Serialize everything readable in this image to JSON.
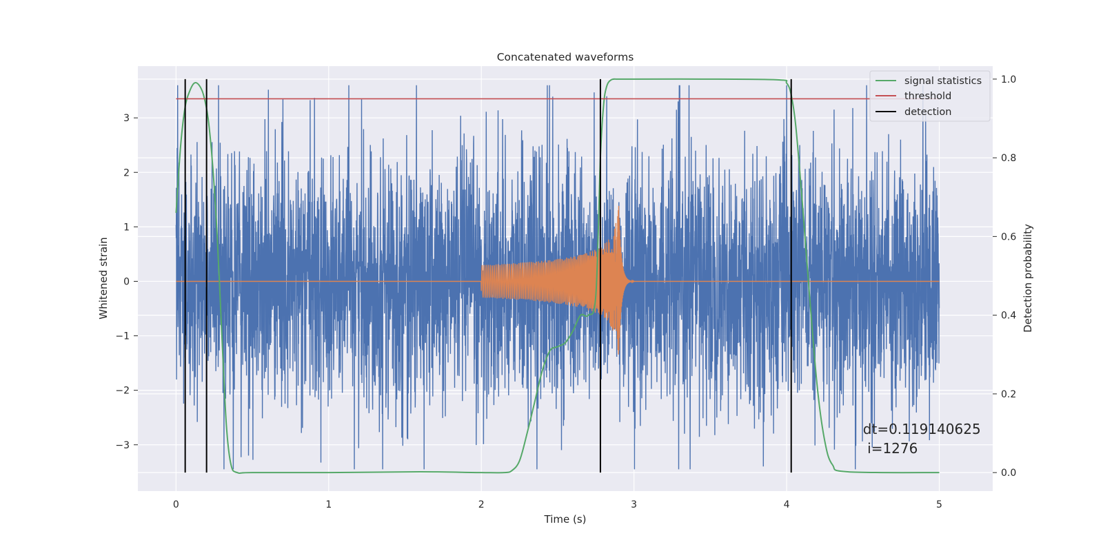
{
  "chart_data": {
    "type": "line",
    "title": "Concatenated waveforms",
    "xlabel": "Time (s)",
    "ylabel": "Whitened strain",
    "y2label": "Detection probability",
    "xlim": [
      -0.25,
      5.35
    ],
    "ylim": [
      -3.85,
      3.95
    ],
    "y2lim": [
      -0.047,
      1.033
    ],
    "xticks": [
      0,
      1,
      2,
      3,
      4,
      5
    ],
    "yticks": [
      -3,
      -2,
      -1,
      0,
      1,
      2,
      3
    ],
    "y2ticks": [
      0.0,
      0.2,
      0.4,
      0.6,
      0.8,
      1.0
    ],
    "xtick_labels": [
      "0",
      "1",
      "2",
      "3",
      "4",
      "5"
    ],
    "ytick_labels": [
      "−3",
      "−2",
      "−1",
      "0",
      "1",
      "2",
      "3"
    ],
    "y2tick_labels": [
      "0.0",
      "0.2",
      "0.4",
      "0.6",
      "0.8",
      "1.0"
    ],
    "grid": true,
    "legend_position": "top-right",
    "legend": [
      "signal statistics",
      "threshold",
      "detection"
    ],
    "colors": {
      "strain": "#4c72b0",
      "injected": "#dd8452",
      "signal_statistics": "#55a868",
      "threshold": "#c44e52",
      "detection": "#000000",
      "background": "#eaeaf2",
      "grid": "#ffffff"
    },
    "series": [
      {
        "name": "",
        "description_of_shape": "whitened noisy strain",
        "x_range": [
          0,
          5
        ],
        "envelope_min": -3.45,
        "envelope_max": 3.6
      },
      {
        "name": "",
        "description_of_shape": "injected chirp",
        "x_start": 2.0,
        "x_peak": 2.9,
        "x_end": 3.0,
        "start_amplitude": 0.3,
        "peak_amplitude": 1.4
      },
      {
        "name": "signal statistics",
        "axis": "y2",
        "x": [
          0.0,
          0.03,
          0.06,
          0.09,
          0.12,
          0.15,
          0.18,
          0.21,
          0.24,
          0.27,
          0.3,
          0.33,
          0.36,
          0.4,
          0.5,
          1.0,
          1.6,
          2.0,
          2.15,
          2.2,
          2.25,
          2.3,
          2.35,
          2.4,
          2.45,
          2.5,
          2.55,
          2.6,
          2.65,
          2.7,
          2.75,
          2.78,
          2.8,
          2.82,
          2.85,
          2.9,
          3.0,
          3.5,
          3.95,
          4.0,
          4.03,
          4.06,
          4.1,
          4.15,
          4.2,
          4.25,
          4.3,
          4.4,
          5.0
        ],
        "y": [
          0.66,
          0.83,
          0.93,
          0.97,
          0.99,
          0.985,
          0.96,
          0.9,
          0.78,
          0.6,
          0.35,
          0.12,
          0.02,
          0.0,
          0.0,
          0.0,
          0.002,
          0.0,
          0.0,
          0.005,
          0.03,
          0.1,
          0.18,
          0.26,
          0.31,
          0.32,
          0.33,
          0.36,
          0.4,
          0.4,
          0.45,
          0.8,
          0.93,
          0.98,
          0.998,
          1.0,
          1.0,
          1.0,
          0.998,
          0.99,
          0.96,
          0.88,
          0.7,
          0.45,
          0.22,
          0.08,
          0.02,
          0.002,
          0.0
        ]
      },
      {
        "name": "threshold",
        "axis": "y2",
        "x": [
          0,
          5
        ],
        "y": [
          0.95,
          0.95
        ]
      }
    ],
    "detections": [
      0.06,
      0.2,
      2.78,
      4.03
    ],
    "annotation": {
      "line1": "dt=0.119140625",
      "line2": " i=1276",
      "x": 4.5,
      "y": -2.8
    }
  }
}
